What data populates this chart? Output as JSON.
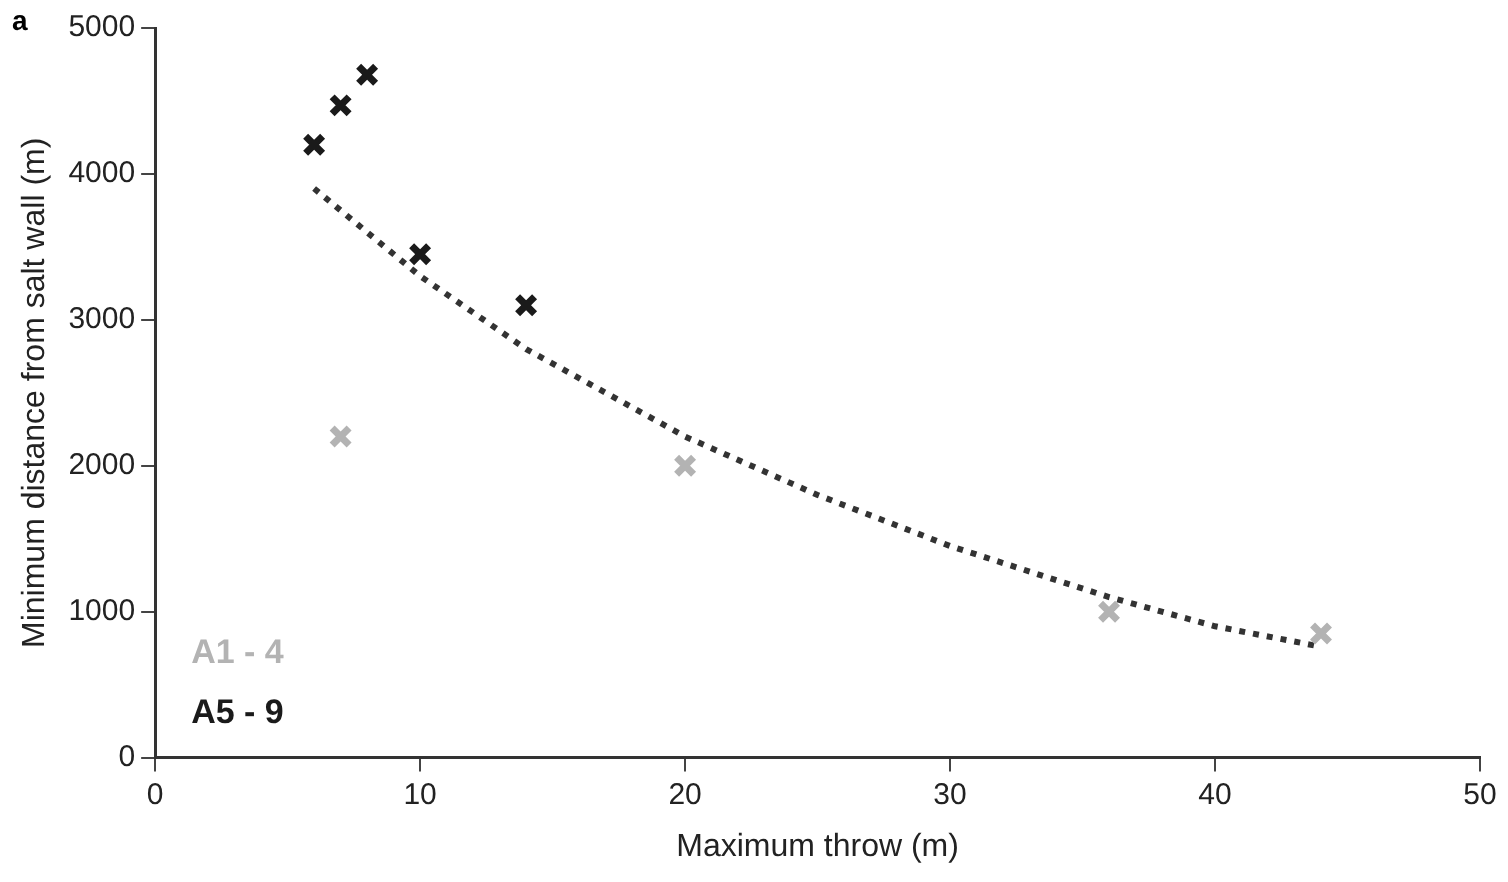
{
  "chart_data": {
    "type": "scatter",
    "xlabel": "Maximum throw (m)",
    "ylabel": "Minimum distance from salt wall (m)",
    "annotations": [
      "a"
    ],
    "xlim": [
      0,
      50
    ],
    "xticks": [
      0,
      10,
      20,
      30,
      40,
      50
    ],
    "ylim": [
      0,
      5000
    ],
    "yticks": [
      0,
      1000,
      2000,
      3000,
      4000,
      5000
    ],
    "grid": false,
    "legend": "bottom left",
    "marker": "cross",
    "series": [
      {
        "name": "A1 - 4",
        "color": "#b3b3b3",
        "x": [
          7,
          20,
          36,
          44
        ],
        "values": [
          2200,
          2000,
          1000,
          850
        ]
      },
      {
        "name": "A5 - 9",
        "color": "#1a1a1a",
        "x": [
          6,
          7,
          8,
          10,
          14
        ],
        "values": [
          4200,
          4470,
          4680,
          3450,
          3100
        ]
      },
      {
        "type": "line",
        "color": "#333333",
        "line_style": "dotted",
        "marker": "none",
        "x": [
          6,
          8,
          10,
          14,
          20,
          25,
          30,
          36,
          40,
          44
        ],
        "values": [
          3900,
          3600,
          3300,
          2800,
          2200,
          1800,
          1450,
          1100,
          900,
          760
        ]
      }
    ]
  }
}
